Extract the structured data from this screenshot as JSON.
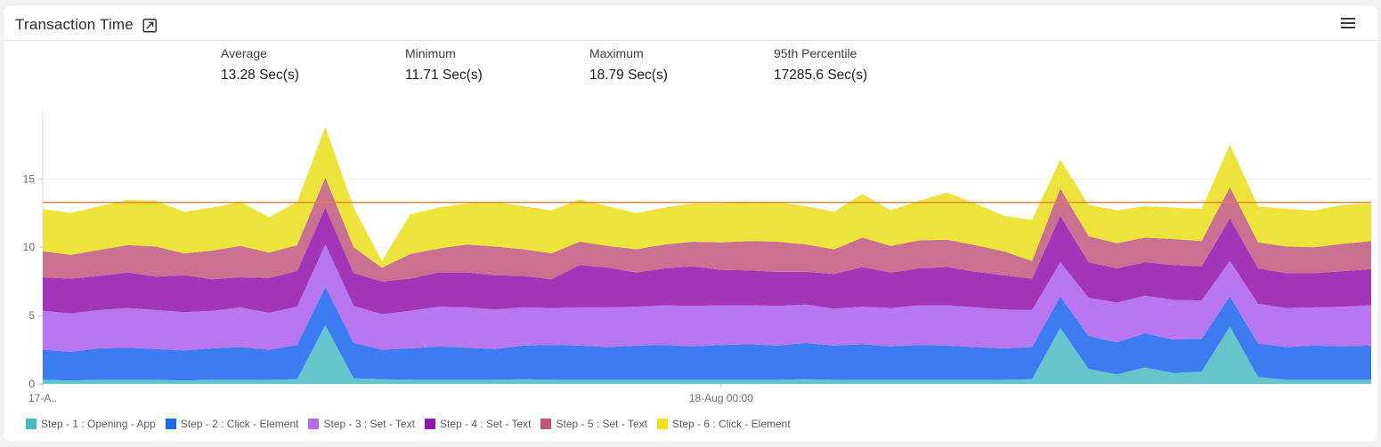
{
  "header": {
    "title": "Transaction Time",
    "expand_icon": "open-expand-icon",
    "menu_icon": "hamburger-menu-icon"
  },
  "stats": [
    {
      "label": "Average",
      "value": "13.28 Sec(s)"
    },
    {
      "label": "Minimum",
      "value": "11.71 Sec(s)"
    },
    {
      "label": "Maximum",
      "value": "18.79 Sec(s)"
    },
    {
      "label": "95th Percentile",
      "value": "17285.6 Sec(s)"
    }
  ],
  "chart_data": {
    "type": "area",
    "stacked": true,
    "title": "Transaction Time",
    "xlabel": "",
    "ylabel": "",
    "ylim": [
      0,
      19.7
    ],
    "yticks": [
      0,
      5,
      10,
      15
    ],
    "grid": "horizontal",
    "legend_position": "bottom",
    "x_count": 48,
    "x_tick_labels": [
      {
        "index": 0,
        "label": "17-A.."
      },
      {
        "index": 24,
        "label": "18-Aug 00:00"
      }
    ],
    "average_line": {
      "value": 13.28,
      "color": "#e8833a"
    },
    "axis_color": "#e3e3e3",
    "grid_color": "#ededed",
    "tick_text_color": "#6f6f6f",
    "series": [
      {
        "name": "Step - 1 : Opening - App",
        "color": "#45b8c0",
        "fill": "#66c4cb",
        "values": [
          0.3,
          0.25,
          0.3,
          0.3,
          0.3,
          0.25,
          0.3,
          0.3,
          0.3,
          0.35,
          4.3,
          0.4,
          0.35,
          0.3,
          0.3,
          0.3,
          0.3,
          0.35,
          0.3,
          0.3,
          0.3,
          0.3,
          0.3,
          0.3,
          0.3,
          0.3,
          0.3,
          0.35,
          0.3,
          0.3,
          0.3,
          0.3,
          0.3,
          0.3,
          0.3,
          0.35,
          4.1,
          1.1,
          0.7,
          1.2,
          0.8,
          0.9,
          4.2,
          0.5,
          0.3,
          0.3,
          0.3,
          0.3
        ]
      },
      {
        "name": "Step - 2 : Click - Element",
        "color": "#1a6fe8",
        "fill": "#3d7bf0",
        "values": [
          2.2,
          2.1,
          2.3,
          2.35,
          2.25,
          2.2,
          2.3,
          2.4,
          2.2,
          2.5,
          2.8,
          2.6,
          2.15,
          2.3,
          2.45,
          2.35,
          2.25,
          2.45,
          2.55,
          2.5,
          2.4,
          2.5,
          2.55,
          2.45,
          2.55,
          2.6,
          2.5,
          2.65,
          2.5,
          2.6,
          2.45,
          2.55,
          2.5,
          2.4,
          2.3,
          2.35,
          2.3,
          2.4,
          2.35,
          2.5,
          2.45,
          2.4,
          2.2,
          2.45,
          2.4,
          2.5,
          2.45,
          2.5
        ]
      },
      {
        "name": "Step - 3 : Set - Text",
        "color": "#b06ee8",
        "fill": "#b877f0",
        "values": [
          2.85,
          2.8,
          2.8,
          2.9,
          2.85,
          2.8,
          2.75,
          2.9,
          2.7,
          2.8,
          3.1,
          2.7,
          2.6,
          2.75,
          2.9,
          2.95,
          2.9,
          2.8,
          2.7,
          2.8,
          2.9,
          2.85,
          2.9,
          2.95,
          2.9,
          2.85,
          2.9,
          2.8,
          2.7,
          2.75,
          2.8,
          2.9,
          2.95,
          2.9,
          2.85,
          2.7,
          2.5,
          2.8,
          2.9,
          2.75,
          2.9,
          2.8,
          2.6,
          2.9,
          2.85,
          2.8,
          2.9,
          2.95
        ]
      },
      {
        "name": "Step - 4 : Set - Text",
        "color": "#8c18b0",
        "fill": "#a335b8",
        "values": [
          2.45,
          2.55,
          2.5,
          2.6,
          2.45,
          2.7,
          2.3,
          2.2,
          2.55,
          2.6,
          2.7,
          2.4,
          2.4,
          2.35,
          2.5,
          2.55,
          2.5,
          2.3,
          2.1,
          3.1,
          2.9,
          2.5,
          2.7,
          2.9,
          2.6,
          2.55,
          2.5,
          2.4,
          2.55,
          2.9,
          2.6,
          2.7,
          2.8,
          2.6,
          2.5,
          2.3,
          3.4,
          2.6,
          2.5,
          2.45,
          2.55,
          2.5,
          3.1,
          2.6,
          2.55,
          2.5,
          2.6,
          2.65
        ]
      },
      {
        "name": "Step - 5 : Set - Text",
        "color": "#c25578",
        "fill": "#ca7090",
        "values": [
          1.9,
          1.75,
          1.9,
          2.0,
          2.2,
          1.6,
          2.1,
          2.3,
          1.85,
          1.9,
          2.2,
          1.9,
          1.0,
          1.8,
          1.75,
          2.05,
          2.1,
          1.95,
          1.9,
          1.7,
          1.6,
          1.7,
          1.75,
          1.8,
          2.0,
          2.15,
          2.2,
          2.0,
          1.8,
          2.15,
          1.95,
          2.05,
          2.0,
          1.95,
          1.75,
          1.3,
          2.0,
          1.9,
          1.85,
          1.8,
          1.9,
          1.85,
          2.3,
          1.9,
          1.95,
          1.9,
          2.0,
          2.05
        ]
      },
      {
        "name": "Step - 6 : Click - Element",
        "color": "#f0e215",
        "fill": "#ece43a",
        "values": [
          3.1,
          3.05,
          3.2,
          3.3,
          3.35,
          3.05,
          3.15,
          3.2,
          2.6,
          3.15,
          3.7,
          2.9,
          0.5,
          2.9,
          3.0,
          3.0,
          3.25,
          3.15,
          3.15,
          3.1,
          2.9,
          2.65,
          2.7,
          2.8,
          2.85,
          2.9,
          2.9,
          2.8,
          2.75,
          3.2,
          2.6,
          2.9,
          3.45,
          3.05,
          2.6,
          3.0,
          2.1,
          2.3,
          2.4,
          2.3,
          2.3,
          2.35,
          3.1,
          2.65,
          2.75,
          2.7,
          2.85,
          2.75
        ]
      }
    ]
  }
}
